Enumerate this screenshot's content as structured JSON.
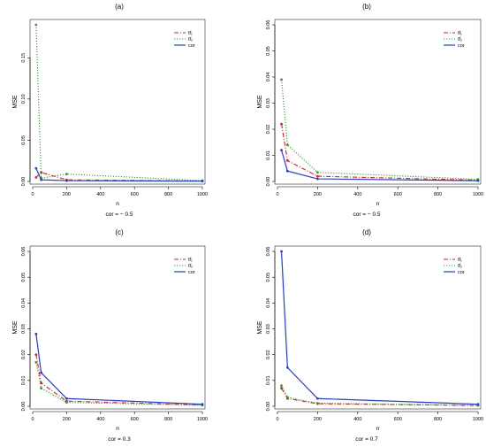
{
  "colors": {
    "theta1": "#e41a1c",
    "theta2": "#2ca02c",
    "cor": "#1f3fd8",
    "axis": "#000000"
  },
  "chart_data": [
    {
      "type": "line",
      "panel_label": "(a)",
      "xlabel": "n",
      "ylabel": "MSE",
      "caption": "cor = − 0.5",
      "xlim": [
        0,
        1000
      ],
      "ylim": [
        0,
        0.19
      ],
      "xticks": [
        "0",
        "200",
        "400",
        "600",
        "800",
        "1000"
      ],
      "yticks": [
        "0.00",
        "0.05",
        "0.10",
        "0.15"
      ],
      "ytick_values": [
        0,
        0.05,
        0.1,
        0.15
      ],
      "legend_position": "top-right",
      "x": [
        20,
        50,
        200,
        1000
      ],
      "series": [
        {
          "name": "θ̂₁",
          "key": "theta1",
          "style": "dashdot",
          "values": [
            0.005,
            0.011,
            0.002,
            0.0005
          ]
        },
        {
          "name": "θ̂₂",
          "key": "theta2",
          "style": "dotted",
          "values": [
            0.19,
            0.004,
            0.009,
            0.001
          ]
        },
        {
          "name": "cor",
          "key": "cor",
          "style": "solid",
          "values": [
            0.016,
            0.002,
            0.001,
            0.0004
          ]
        }
      ]
    },
    {
      "type": "line",
      "panel_label": "(b)",
      "xlabel": "n",
      "ylabel": "MSE",
      "caption": "cor = − 0.5",
      "xlim": [
        0,
        1000
      ],
      "ylim": [
        0,
        0.06
      ],
      "xticks": [
        "0",
        "200",
        "400",
        "600",
        "800",
        "1000"
      ],
      "yticks": [
        "0.00",
        "0.01",
        "0.02",
        "0.03",
        "0.04",
        "0.05",
        "0.06"
      ],
      "ytick_values": [
        0,
        0.01,
        0.02,
        0.03,
        0.04,
        0.05,
        0.06
      ],
      "legend_position": "top-right",
      "x": [
        20,
        50,
        200,
        1000
      ],
      "series": [
        {
          "name": "θ̂₁",
          "key": "theta1",
          "style": "dashdot",
          "values": [
            0.022,
            0.008,
            0.002,
            0.0005
          ]
        },
        {
          "name": "θ̂₂",
          "key": "theta2",
          "style": "dotted",
          "values": [
            0.039,
            0.014,
            0.0035,
            0.0008
          ]
        },
        {
          "name": "cor",
          "key": "cor",
          "style": "solid",
          "values": [
            0.012,
            0.004,
            0.001,
            0.0003
          ]
        }
      ]
    },
    {
      "type": "line",
      "panel_label": "(c)",
      "xlabel": "n",
      "ylabel": "MSE",
      "caption": "cor = 0.3",
      "xlim": [
        0,
        1000
      ],
      "ylim": [
        0,
        0.06
      ],
      "xticks": [
        "0",
        "200",
        "400",
        "600",
        "800",
        "1000"
      ],
      "yticks": [
        "0.00",
        "0.01",
        "0.02",
        "0.03",
        "0.04",
        "0.05",
        "0.06"
      ],
      "ytick_values": [
        0,
        0.01,
        0.02,
        0.03,
        0.04,
        0.05,
        0.06
      ],
      "legend_position": "top-right",
      "x": [
        20,
        50,
        200,
        1000
      ],
      "series": [
        {
          "name": "θ̂₁",
          "key": "theta1",
          "style": "dashdot",
          "values": [
            0.02,
            0.009,
            0.002,
            0.0005
          ]
        },
        {
          "name": "θ̂₂",
          "key": "theta2",
          "style": "dotted",
          "values": [
            0.017,
            0.007,
            0.0015,
            0.0004
          ]
        },
        {
          "name": "cor",
          "key": "cor",
          "style": "solid",
          "values": [
            0.028,
            0.013,
            0.003,
            0.0008
          ]
        }
      ]
    },
    {
      "type": "line",
      "panel_label": "(d)",
      "xlabel": "n",
      "ylabel": "MSE",
      "caption": "cor = 0.7",
      "xlim": [
        0,
        1000
      ],
      "ylim": [
        0,
        0.06
      ],
      "xticks": [
        "0",
        "200",
        "400",
        "600",
        "800",
        "1000"
      ],
      "yticks": [
        "0.00",
        "0.01",
        "0.02",
        "0.03",
        "0.04",
        "0.05",
        "0.06"
      ],
      "ytick_values": [
        0,
        0.01,
        0.02,
        0.03,
        0.04,
        0.05,
        0.06
      ],
      "legend_position": "top-right",
      "x": [
        20,
        50,
        200,
        1000
      ],
      "series": [
        {
          "name": "θ̂₁",
          "key": "theta1",
          "style": "dashdot",
          "values": [
            0.007,
            0.003,
            0.001,
            0.0003
          ]
        },
        {
          "name": "θ̂₂",
          "key": "theta2",
          "style": "dotted",
          "values": [
            0.008,
            0.0035,
            0.0012,
            0.0004
          ]
        },
        {
          "name": "cor",
          "key": "cor",
          "style": "solid",
          "values": [
            0.06,
            0.015,
            0.003,
            0.0008
          ]
        }
      ]
    }
  ]
}
